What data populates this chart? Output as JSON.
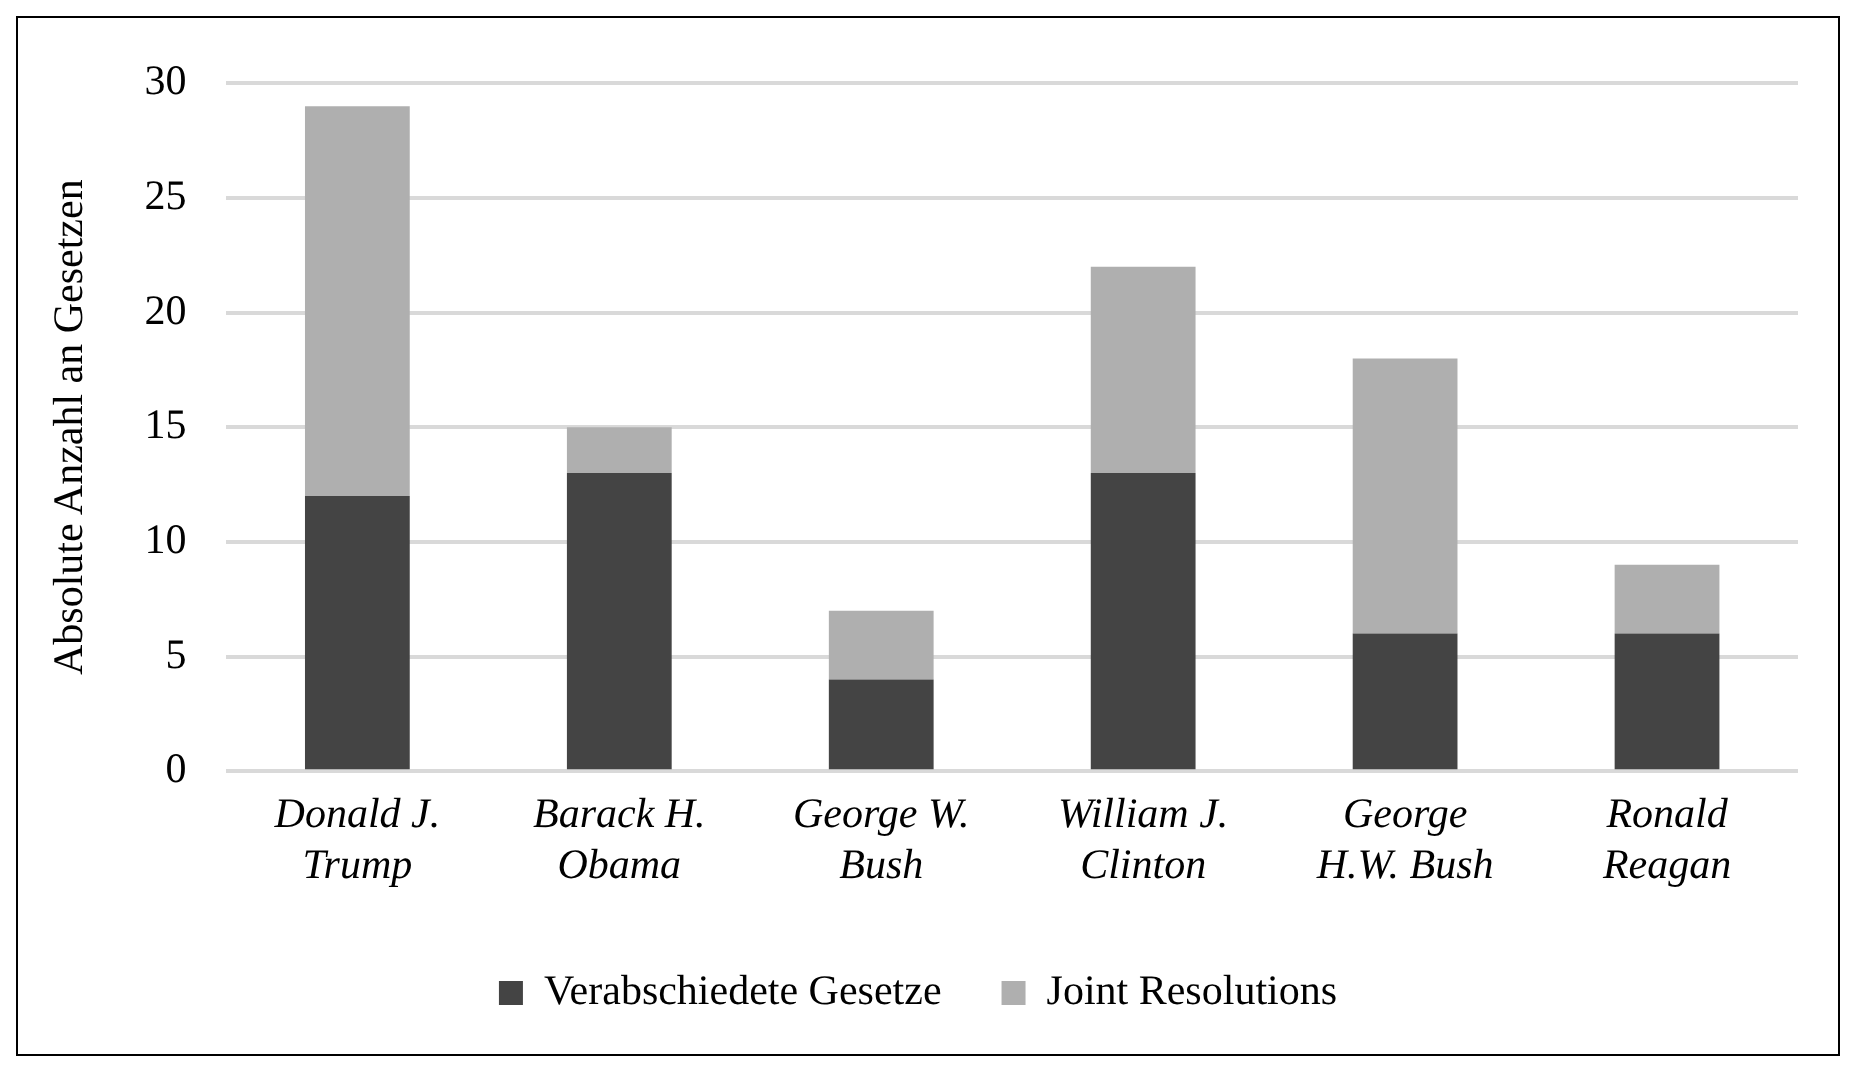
{
  "chart_data": {
    "type": "bar",
    "stacked": true,
    "ylabel": "Absolute Anzahl an Gesetzen",
    "categories": [
      "Donald J. Trump",
      "Barack H. Obama",
      "George W. Bush",
      "William J. Clinton",
      "George H.W. Bush",
      "Ronald Reagan"
    ],
    "series": [
      {
        "name": "Verabschiedete Gesetze",
        "color": "#444444",
        "values": [
          12,
          13,
          4,
          13,
          6,
          6
        ]
      },
      {
        "name": "Joint Resolutions",
        "color": "#afafaf",
        "values": [
          17,
          2,
          3,
          9,
          12,
          3
        ]
      }
    ],
    "ylim": [
      0,
      30
    ],
    "yticks": [
      0,
      5,
      10,
      15,
      20,
      25,
      30
    ],
    "grid": "y",
    "legend": "bottom"
  }
}
